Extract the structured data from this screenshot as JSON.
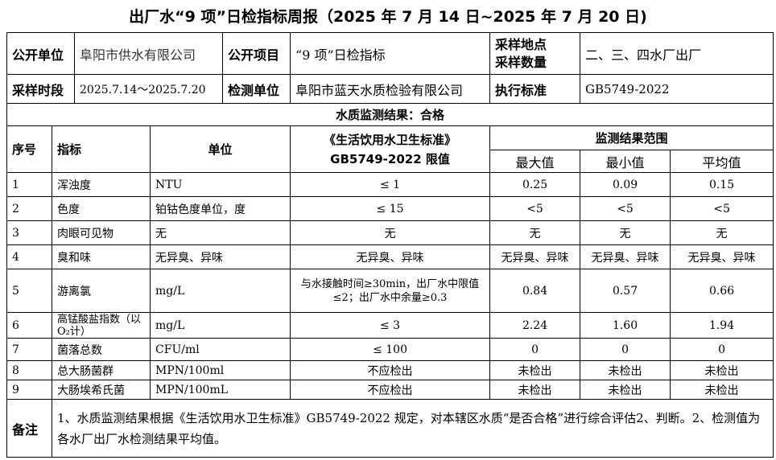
{
  "title": "出厂水“9 项”日检指标周报（2025 年 7 月 14 日~2025 年 7 月 20 日)",
  "info": {
    "unit_label": "公开单位",
    "unit_value": "阜阳市供水有限公司",
    "project_label": "公开项目",
    "project_value": "“9 项”日检指标",
    "site_label": "采样地点\n采样数量",
    "site_value": "二、三、四水厂出厂",
    "time_label": "采样时段",
    "time_value": "2025.7.14～2025.7.20",
    "test_label": "检测单位",
    "test_value": "阜阳市蓝天水质检验有限公司",
    "std_label": "执行标准",
    "std_value": "GB5749-2022"
  },
  "result_line": "水质监测结果：合格",
  "headers": {
    "no": "序号",
    "item": "指标",
    "unit": "单位",
    "limit": "《生活饮用水卫生标准》\nGB5749-2022 限值",
    "range": "监测结果范围",
    "max": "最大值",
    "min": "最小值",
    "avg": "平均值"
  },
  "rows": [
    {
      "no": "1",
      "item": "浑浊度",
      "unit": "NTU",
      "limit": "≤ 1",
      "max": "0.25",
      "min": "0.09",
      "avg": "0.15"
    },
    {
      "no": "2",
      "item": "色度",
      "unit": "铂钴色度单位，度",
      "limit": "≤ 15",
      "max": "<5",
      "min": "<5",
      "avg": "<5"
    },
    {
      "no": "3",
      "item": "肉眼可见物",
      "unit": "无",
      "limit": "无",
      "max": "无",
      "min": "无",
      "avg": "无"
    },
    {
      "no": "4",
      "item": "臭和味",
      "unit": "无异臭、异味",
      "limit": "无异臭、异味",
      "max": "无异臭、异味",
      "min": "无异臭、异味",
      "avg": "无异臭、异味"
    },
    {
      "no": "5",
      "item": "游离氯",
      "unit": "mg/L",
      "limit": "与水接触时间≥30min，出厂水中限值≤2；出厂水中余量≥0.3",
      "max": "0.84",
      "min": "0.57",
      "avg": "0.66"
    },
    {
      "no": "6",
      "item": "高锰酸盐指数（以O₂计）",
      "unit": "mg/L",
      "limit": "≤ 3",
      "max": "2.24",
      "min": "1.60",
      "avg": "1.94"
    },
    {
      "no": "7",
      "item": "菌落总数",
      "unit": "CFU/ml",
      "limit": "≤ 100",
      "max": "0",
      "min": "0",
      "avg": "0"
    },
    {
      "no": "8",
      "item": "总大肠菌群",
      "unit": "MPN/100ml",
      "limit": "不应检出",
      "max": "未检出",
      "min": "未检出",
      "avg": "未检出"
    },
    {
      "no": "9",
      "item": "大肠埃希氏菌",
      "unit": "MPN/100mL",
      "limit": "不应检出",
      "max": "未检出",
      "min": "未检出",
      "avg": "未检出"
    }
  ],
  "remark_label": "备注",
  "remark": "1、水质监测结果根据《生活饮用水卫生标准》GB5749-2022 规定，对本辖区水质“是否合格”进行综合评估2、判断。2、检测值为各水厂出厂水检测结果平均值。"
}
